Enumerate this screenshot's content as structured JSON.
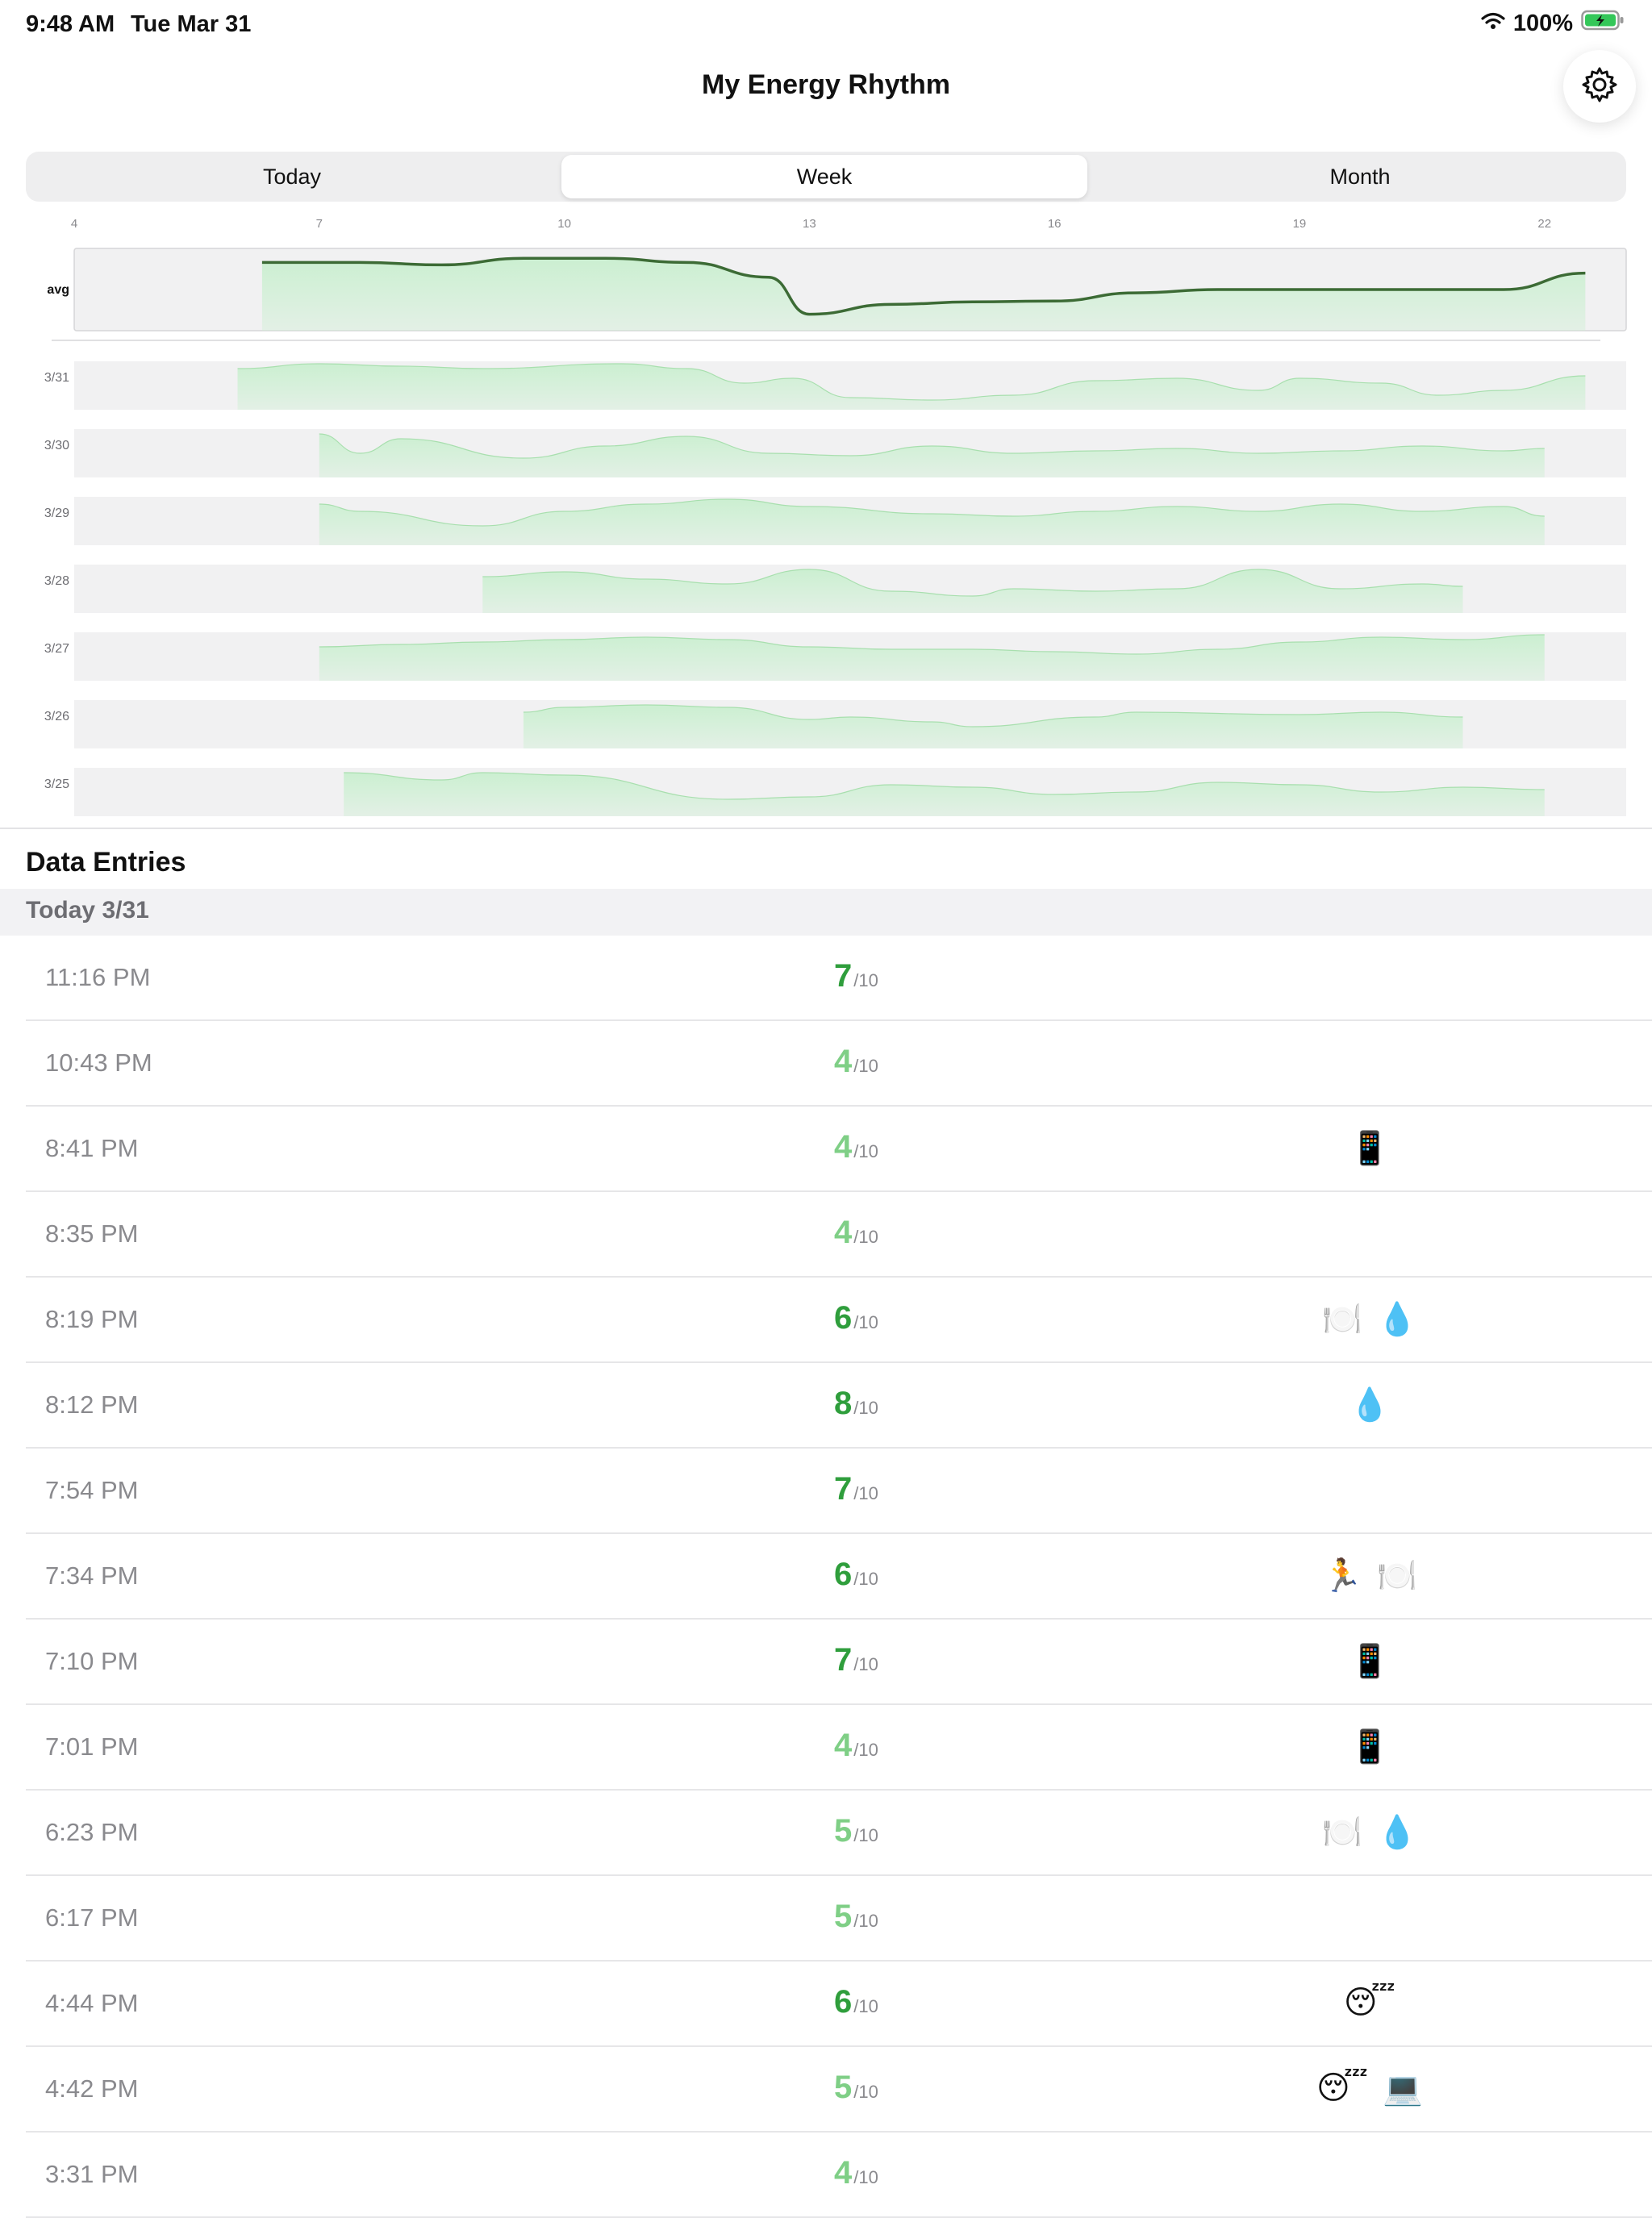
{
  "status_bar": {
    "time": "9:48 AM",
    "date": "Tue Mar 31",
    "battery": "100%"
  },
  "header": {
    "title": "My Energy Rhythm",
    "settings_icon": "gear-icon"
  },
  "tabs": [
    {
      "label": "Today",
      "active": false
    },
    {
      "label": "Week",
      "active": true
    },
    {
      "label": "Month",
      "active": false
    }
  ],
  "chart_data": {
    "type": "area",
    "x_ticks": [
      "4",
      "7",
      "10",
      "13",
      "16",
      "19",
      "22"
    ],
    "avg_label": "avg",
    "row_labels": [
      "3/31",
      "3/30",
      "3/29",
      "3/28",
      "3/27",
      "3/26",
      "3/25"
    ],
    "x_range": [
      4,
      23
    ],
    "y_range": [
      0,
      10
    ],
    "fill_color": "#c9efcf",
    "line_color": "#3c6b35",
    "avg_series": {
      "x": [
        6.3,
        7.5,
        8.5,
        9.5,
        10.5,
        11.5,
        12.5,
        13.0,
        14.0,
        15.0,
        16.0,
        17.0,
        18.0,
        19.0,
        20.0,
        21.0,
        21.5,
        22.5
      ],
      "y": [
        8.3,
        8.3,
        8.0,
        8.8,
        8.8,
        8.3,
        6.5,
        2.0,
        3.2,
        3.5,
        3.6,
        4.6,
        5.0,
        5.0,
        5.0,
        5.0,
        5.0,
        7.0
      ]
    },
    "day_series": [
      {
        "x": [
          6.0,
          7.0,
          8.0,
          9.0,
          10.7,
          11.5,
          12.2,
          12.8,
          13.5,
          14.5,
          15.5,
          16.5,
          17.5,
          18.5,
          19.0,
          20.0,
          20.7,
          21.5,
          22.5
        ],
        "y": [
          8.5,
          9.5,
          9.0,
          8.5,
          9.5,
          8.5,
          5.5,
          6.5,
          2.5,
          2.0,
          3.0,
          6.0,
          6.5,
          4.0,
          6.5,
          5.5,
          3.0,
          4.0,
          7.0
        ]
      },
      {
        "x": [
          7.0,
          7.5,
          8.0,
          9.5,
          10.5,
          11.5,
          12.5,
          13.5,
          14.5,
          15.5,
          16.5,
          17.5,
          18.5,
          19.5,
          20.5,
          21.5,
          22.0
        ],
        "y": [
          9.0,
          5.0,
          8.0,
          4.0,
          6.5,
          8.5,
          5.0,
          4.5,
          6.5,
          5.0,
          5.5,
          6.0,
          5.0,
          5.5,
          6.5,
          5.5,
          6.0
        ]
      },
      {
        "x": [
          7.0,
          7.5,
          9.0,
          10.0,
          11.0,
          12.0,
          13.0,
          14.5,
          15.5,
          16.5,
          17.5,
          18.5,
          19.5,
          20.5,
          21.5,
          22.0
        ],
        "y": [
          8.5,
          7.0,
          4.0,
          7.0,
          8.5,
          9.5,
          8.0,
          6.5,
          6.0,
          7.0,
          8.0,
          7.0,
          8.5,
          7.0,
          8.0,
          6.0
        ]
      },
      {
        "x": [
          9.0,
          10.0,
          11.0,
          12.0,
          13.0,
          14.0,
          15.0,
          15.5,
          16.5,
          17.5,
          18.5,
          19.5,
          20.5,
          21.0
        ],
        "y": [
          7.5,
          8.5,
          7.0,
          6.0,
          9.0,
          4.5,
          3.5,
          5.0,
          4.5,
          5.0,
          9.0,
          5.0,
          6.0,
          5.5
        ]
      },
      {
        "x": [
          7.0,
          8.0,
          9.0,
          10.0,
          11.0,
          12.0,
          13.0,
          14.0,
          15.0,
          16.0,
          17.0,
          18.0,
          19.0,
          20.0,
          21.0,
          22.0
        ],
        "y": [
          7.0,
          7.5,
          8.0,
          8.5,
          9.0,
          8.5,
          7.0,
          6.5,
          6.5,
          6.0,
          5.5,
          6.5,
          8.0,
          9.0,
          8.5,
          9.5
        ]
      },
      {
        "x": [
          9.5,
          10.0,
          11.0,
          12.0,
          13.0,
          13.5,
          14.5,
          15.0,
          16.5,
          17.0,
          19.0,
          20.0,
          21.0
        ],
        "y": [
          7.5,
          8.5,
          9.0,
          8.5,
          6.0,
          6.5,
          5.5,
          4.5,
          6.5,
          7.5,
          7.0,
          7.5,
          6.5
        ]
      },
      {
        "x": [
          7.3,
          8.5,
          9.0,
          10.0,
          12.0,
          13.0,
          14.0,
          15.0,
          16.0,
          17.0,
          18.0,
          19.0,
          20.0,
          21.0,
          22.0
        ],
        "y": [
          9.0,
          7.5,
          9.0,
          8.5,
          3.5,
          4.0,
          6.5,
          6.0,
          4.5,
          5.0,
          7.0,
          6.5,
          5.0,
          6.0,
          5.5
        ]
      }
    ]
  },
  "entries": {
    "title": "Data Entries",
    "section_label": "Today 3/31",
    "denominator": "/10",
    "rows": [
      {
        "time": "11:16 PM",
        "score": "7",
        "tags": []
      },
      {
        "time": "10:43 PM",
        "score": "4",
        "tags": []
      },
      {
        "time": "8:41 PM",
        "score": "4",
        "tags": [
          "📱"
        ]
      },
      {
        "time": "8:35 PM",
        "score": "4",
        "tags": []
      },
      {
        "time": "8:19 PM",
        "score": "6",
        "tags": [
          "🍽️",
          "💧"
        ]
      },
      {
        "time": "8:12 PM",
        "score": "8",
        "tags": [
          "💧"
        ]
      },
      {
        "time": "7:54 PM",
        "score": "7",
        "tags": []
      },
      {
        "time": "7:34 PM",
        "score": "6",
        "tags": [
          "🏃",
          "🍽️"
        ]
      },
      {
        "time": "7:10 PM",
        "score": "7",
        "tags": [
          "📱"
        ]
      },
      {
        "time": "7:01 PM",
        "score": "4",
        "tags": [
          "📱"
        ]
      },
      {
        "time": "6:23 PM",
        "score": "5",
        "tags": [
          "🍽️",
          "💧"
        ]
      },
      {
        "time": "6:17 PM",
        "score": "5",
        "tags": []
      },
      {
        "time": "4:44 PM",
        "score": "6",
        "tags": [
          "😴"
        ]
      },
      {
        "time": "4:42 PM",
        "score": "5",
        "tags": [
          "😴",
          "💻"
        ]
      },
      {
        "time": "3:31 PM",
        "score": "4",
        "tags": []
      }
    ]
  },
  "colors": {
    "score_high": "#2f9e3c",
    "score_low": "#7fcf86",
    "accent": "#34c759"
  }
}
